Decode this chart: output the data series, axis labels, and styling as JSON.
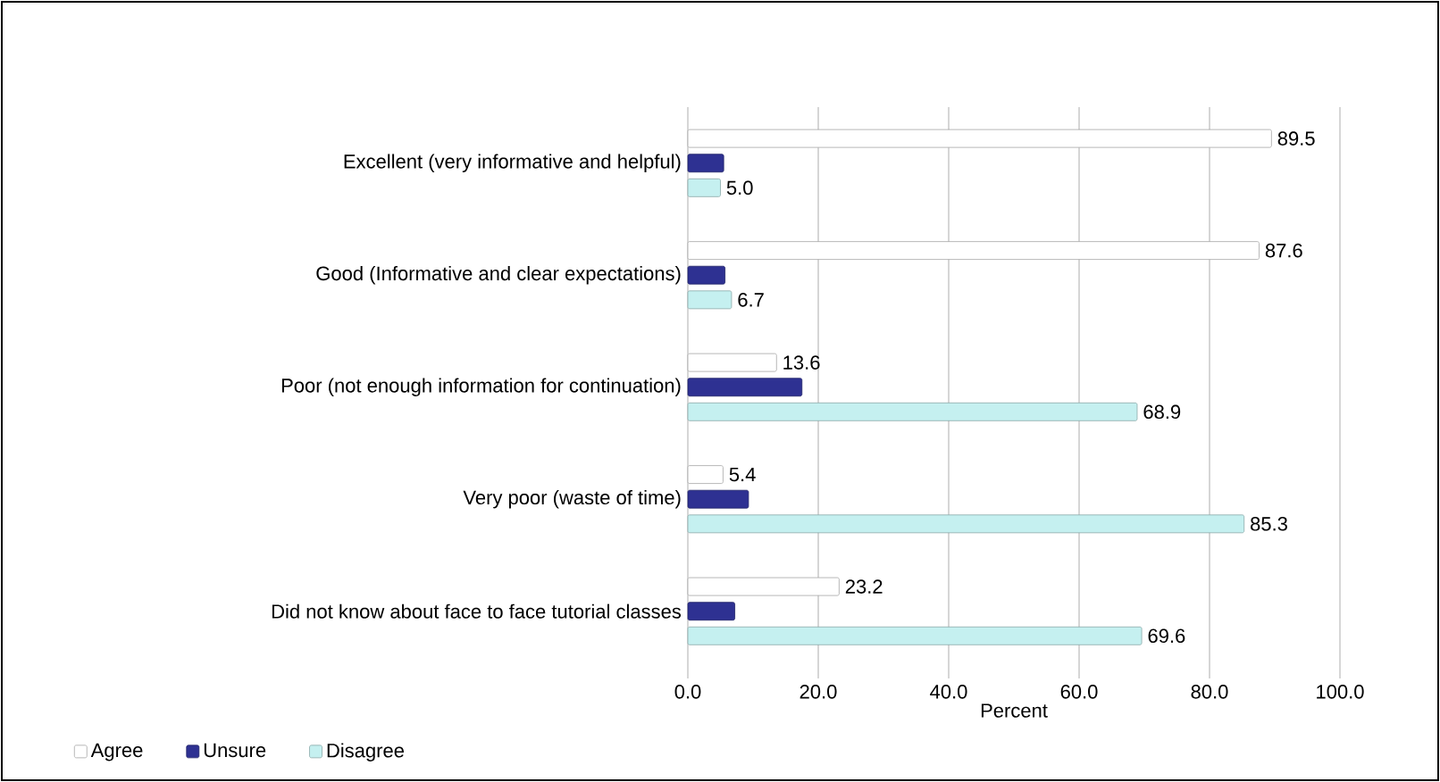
{
  "chart_data": {
    "type": "bar",
    "orientation": "horizontal",
    "xlabel": "Percent",
    "categories": [
      "Excellent (very informative and helpful)",
      "Good (Informative and clear expectations)",
      "Poor (not enough information for continuation)",
      "Very poor (waste of time)",
      "Did not know about face to face tutorial classes"
    ],
    "series": [
      {
        "name": "Agree",
        "color": "#ffffff",
        "values": [
          89.5,
          87.6,
          13.6,
          5.4,
          23.2
        ],
        "value_labels": [
          "89.5",
          "87.6",
          "13.6",
          "5.4",
          "23.2"
        ]
      },
      {
        "name": "Unsure",
        "color": "#2e3192",
        "values": [
          5.5,
          5.7,
          17.5,
          9.3,
          7.2
        ]
      },
      {
        "name": "Disagree",
        "color": "#c5f0f0",
        "values": [
          5.0,
          6.7,
          68.9,
          85.3,
          69.6
        ],
        "value_labels": [
          "5.0",
          "6.7",
          "68.9",
          "85.3",
          "69.6"
        ]
      }
    ],
    "xlim": [
      0,
      100
    ],
    "xticks": [
      {
        "value": 0,
        "label": "0.0"
      },
      {
        "value": 20,
        "label": "20.0"
      },
      {
        "value": 40,
        "label": "40.0"
      },
      {
        "value": 60,
        "label": "60.0"
      },
      {
        "value": 80,
        "label": "80.0"
      },
      {
        "value": 100,
        "label": "100.0"
      }
    ],
    "grid": "x",
    "legend": "bottom left"
  }
}
